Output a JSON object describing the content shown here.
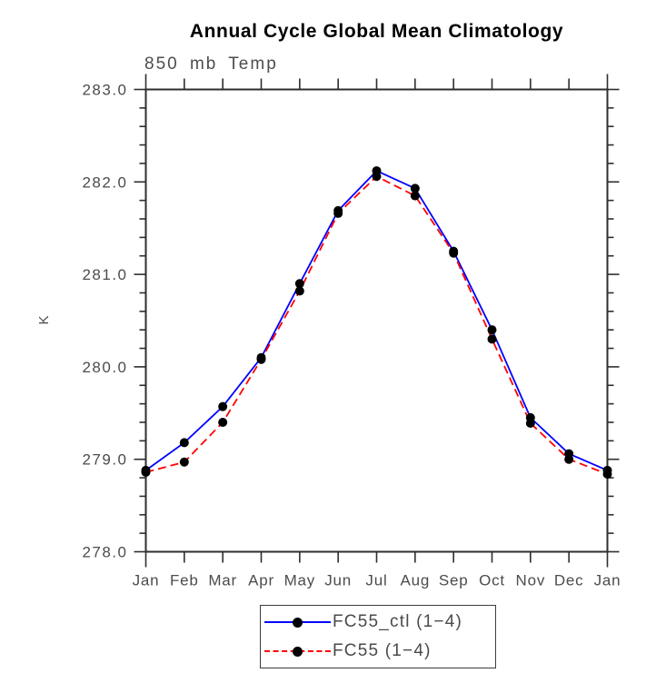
{
  "header": {
    "title": "Annual Cycle Global Mean Climatology",
    "subtitle": "850 mb Temp"
  },
  "chart_data": {
    "type": "line",
    "title": "Annual Cycle Global Mean Climatology",
    "subtitle": "850 mb Temp",
    "xlabel": "",
    "ylabel": "K",
    "x_tick_labels": [
      "Jan",
      "Feb",
      "Mar",
      "Apr",
      "May",
      "Jun",
      "Jul",
      "Aug",
      "Sep",
      "Oct",
      "Nov",
      "Dec",
      "Jan"
    ],
    "y_tick_labels": [
      "278.0",
      "279.0",
      "280.0",
      "281.0",
      "282.0",
      "283.0"
    ],
    "ylim": [
      278.0,
      283.0
    ],
    "y_major_step": 1.0,
    "y_minor_step": 0.2,
    "grid": false,
    "legend_position": "bottom-center",
    "axis_color": "#2e2e2e",
    "marker": "filled-circle",
    "series": [
      {
        "name": "FC55_ctl (1−4)",
        "color": "#0000ff",
        "style": "solid",
        "marker_color": "#000000",
        "values": [
          278.88,
          279.18,
          279.57,
          280.1,
          280.9,
          281.69,
          282.12,
          281.93,
          281.25,
          280.4,
          279.45,
          279.06,
          278.88
        ]
      },
      {
        "name": "FC55 (1−4)",
        "color": "#ff0000",
        "style": "dashed",
        "marker_color": "#000000",
        "values": [
          278.86,
          278.97,
          279.4,
          280.08,
          280.82,
          281.66,
          282.06,
          281.85,
          281.23,
          280.3,
          279.39,
          279.0,
          278.84
        ]
      }
    ]
  }
}
